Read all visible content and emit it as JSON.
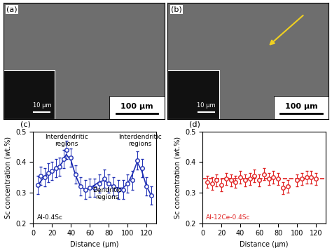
{
  "images": [
    {
      "panel": "(a)",
      "scale_bar": "100 μm",
      "inset_scale_bar": "10 μm"
    },
    {
      "panel": "(b)",
      "scale_bar": "100 μm",
      "inset_scale_bar": "10 μm"
    }
  ],
  "chart_data": [
    {
      "type": "scatter",
      "panel": "(c)",
      "x_label": "Distance (μm)",
      "y_label": "Sc concentration (wt.%)",
      "xlim": [
        0,
        130
      ],
      "xticks": [
        0,
        20,
        40,
        60,
        80,
        100,
        120
      ],
      "ylim": [
        0.2,
        0.5
      ],
      "yticks": [
        0.2,
        0.3,
        0.4,
        0.5
      ],
      "annotations": [
        {
          "text": "Interdendritic\nregions",
          "color": "#000000"
        },
        {
          "text": "Interdendritic\nregions",
          "color": "#000000"
        },
        {
          "text": "Dendritic\nregions",
          "color": "#000000"
        },
        {
          "text": "Al-0.4Sc",
          "color": "#000000"
        }
      ],
      "series": [
        {
          "type": "scatter",
          "color": "#1f2fb4",
          "marker": "circle",
          "x": [
            5,
            8,
            12,
            16,
            20,
            24,
            28,
            32,
            35,
            40,
            45,
            50,
            55,
            60,
            65,
            70,
            75,
            80,
            85,
            90,
            95,
            100,
            105,
            110,
            115,
            120,
            125
          ],
          "values": [
            0.325,
            0.355,
            0.35,
            0.365,
            0.37,
            0.38,
            0.385,
            0.41,
            0.44,
            0.415,
            0.36,
            0.32,
            0.31,
            0.315,
            0.315,
            0.33,
            0.345,
            0.33,
            0.32,
            0.31,
            0.31,
            0.33,
            0.34,
            0.405,
            0.38,
            0.32,
            0.29
          ],
          "errors": [
            0.03,
            0.03,
            0.03,
            0.03,
            0.03,
            0.03,
            0.03,
            0.03,
            0.03,
            0.03,
            0.03,
            0.03,
            0.03,
            0.03,
            0.03,
            0.03,
            0.03,
            0.03,
            0.03,
            0.03,
            0.03,
            0.03,
            0.03,
            0.03,
            0.03,
            0.03,
            0.03
          ]
        },
        {
          "type": "line",
          "color": "#1f2fb4",
          "line_style": "solid",
          "x": [
            5,
            10,
            15,
            20,
            25,
            30,
            35,
            40,
            45,
            50,
            55,
            60,
            65,
            70,
            75,
            80,
            85,
            90,
            95,
            100,
            105,
            110,
            115,
            120,
            125
          ],
          "values": [
            0.325,
            0.345,
            0.36,
            0.37,
            0.38,
            0.395,
            0.425,
            0.405,
            0.355,
            0.32,
            0.31,
            0.315,
            0.325,
            0.335,
            0.34,
            0.33,
            0.32,
            0.315,
            0.315,
            0.33,
            0.36,
            0.4,
            0.37,
            0.32,
            0.29
          ]
        }
      ]
    },
    {
      "type": "scatter",
      "panel": "(d)",
      "x_label": "Distance (μm)",
      "y_label": "Sc concentration (wt.%)",
      "xlim": [
        0,
        130
      ],
      "xticks": [
        0,
        20,
        40,
        60,
        80,
        100,
        120
      ],
      "ylim": [
        0.2,
        0.5
      ],
      "yticks": [
        0.2,
        0.3,
        0.4,
        0.5
      ],
      "annotations": [
        {
          "text": "Al-12Ce-0.4Sc",
          "color": "#e02020"
        }
      ],
      "series": [
        {
          "type": "scatter",
          "color": "#e02020",
          "marker": "circle",
          "x": [
            5,
            10,
            15,
            20,
            25,
            30,
            35,
            40,
            45,
            50,
            55,
            60,
            65,
            70,
            75,
            80,
            85,
            90,
            100,
            105,
            110,
            115,
            120
          ],
          "values": [
            0.335,
            0.33,
            0.34,
            0.325,
            0.345,
            0.34,
            0.335,
            0.35,
            0.34,
            0.345,
            0.355,
            0.34,
            0.36,
            0.345,
            0.35,
            0.345,
            0.315,
            0.32,
            0.34,
            0.345,
            0.35,
            0.35,
            0.345
          ],
          "errors": [
            0.02,
            0.02,
            0.02,
            0.02,
            0.02,
            0.02,
            0.02,
            0.02,
            0.02,
            0.02,
            0.02,
            0.02,
            0.02,
            0.02,
            0.02,
            0.02,
            0.02,
            0.02,
            0.02,
            0.02,
            0.02,
            0.02,
            0.02
          ]
        },
        {
          "type": "line",
          "color": "#e02020",
          "line_style": "dashed",
          "x": [
            0,
            130
          ],
          "values": [
            0.345,
            0.345
          ]
        }
      ]
    }
  ]
}
